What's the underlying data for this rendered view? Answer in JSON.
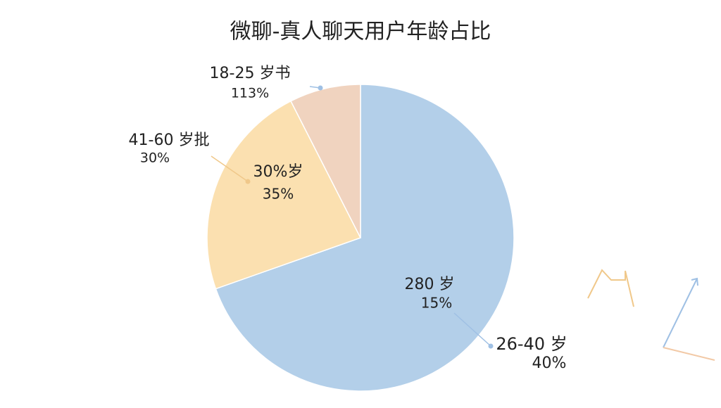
{
  "chart_data": {
    "type": "pie",
    "title": "微聊-真人聊天用户年龄占比",
    "categories": [
      "26-40 岁",
      "41-60 岁批",
      "18-25 岁书"
    ],
    "values": [
      69.6,
      22.9,
      7.5
    ],
    "colors": [
      "#b3cfe9",
      "#fbe0b0",
      "#f0d3bf"
    ],
    "annotations": [
      "40%",
      "30%",
      "113%",
      "280 岁",
      "15%",
      "30%岁",
      "35%"
    ]
  }
}
